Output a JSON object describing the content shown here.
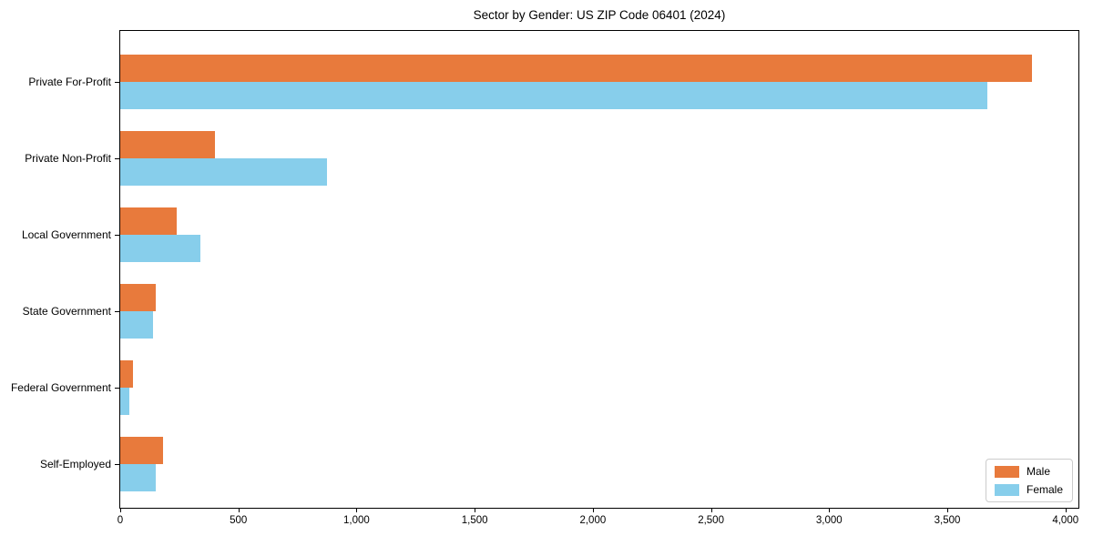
{
  "title": "Sector by Gender: US ZIP Code 06401 (2024)",
  "chart_data": {
    "type": "bar",
    "orientation": "horizontal",
    "title": "Sector by Gender: US ZIP Code 06401 (2024)",
    "categories": [
      "Private For-Profit",
      "Private Non-Profit",
      "Local Government",
      "State Government",
      "Federal Government",
      "Self-Employed"
    ],
    "series": [
      {
        "name": "Male",
        "color": "#e87a3c",
        "values": [
          3860,
          400,
          240,
          150,
          55,
          180
        ]
      },
      {
        "name": "Female",
        "color": "#87ceeb",
        "values": [
          3670,
          875,
          340,
          140,
          40,
          150
        ]
      }
    ],
    "xlabel": "",
    "ylabel": "",
    "xlim": [
      0,
      4055
    ],
    "xticks": [
      0,
      500,
      1000,
      1500,
      2000,
      2500,
      3000,
      3500,
      4000
    ],
    "xtick_labels": [
      "0",
      "500",
      "1,000",
      "1,500",
      "2,000",
      "2,500",
      "3,000",
      "3,500",
      "4,000"
    ],
    "grid": false,
    "legend_position": "lower right",
    "axis_color": "#000000",
    "background_color": "#ffffff"
  },
  "legend": {
    "items": [
      {
        "label": "Male",
        "color": "#e87a3c"
      },
      {
        "label": "Female",
        "color": "#87ceeb"
      }
    ]
  }
}
